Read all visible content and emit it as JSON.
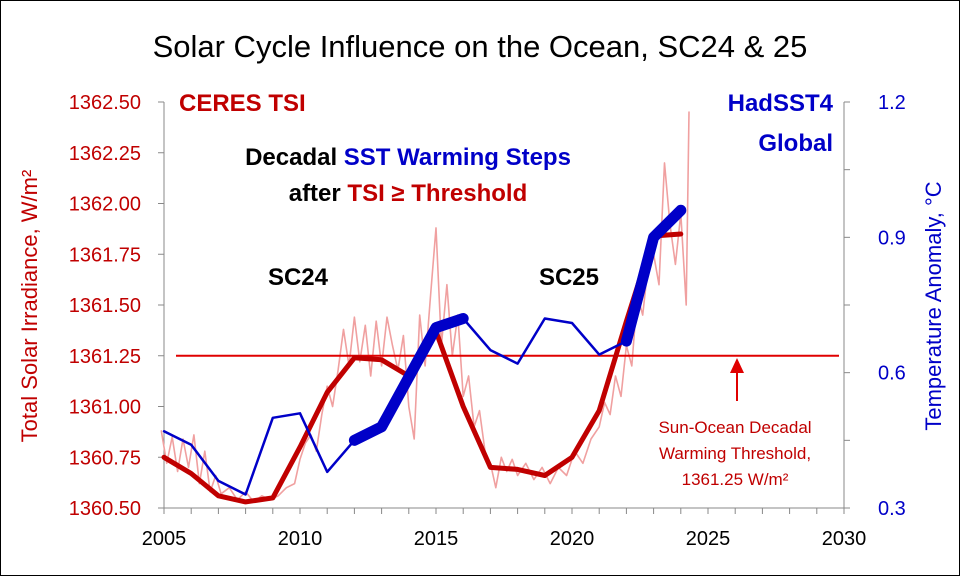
{
  "chart_data": {
    "type": "line",
    "title": "Solar Cycle Influence on the Ocean, SC24 & 25",
    "xlabel": "",
    "ylabel": "Total Solar Irradiance, W/m²",
    "y2label": "Temperature Anomaly, °C",
    "xlim": [
      2005,
      2030
    ],
    "ylim": [
      1360.5,
      1362.5
    ],
    "y2lim": [
      0.3,
      1.2
    ],
    "x_ticks": [
      "2005",
      "2010",
      "2015",
      "2020",
      "2025",
      "2030"
    ],
    "y_ticks": [
      "1360.50",
      "1360.75",
      "1361.00",
      "1361.25",
      "1361.50",
      "1361.75",
      "1362.00",
      "1362.25",
      "1362.50"
    ],
    "y2_ticks": [
      "0.3",
      "0.6",
      "0.9",
      "1.2"
    ],
    "grid": false,
    "colors": {
      "tsi": "#c00000",
      "tsi_monthly": "#f0a0a0",
      "sst": "#0000c8",
      "threshold": "#e00000",
      "text_dark": "#000000"
    },
    "legend": {
      "tsi_label": "CERES TSI",
      "sst_label_line1": "HadSST4",
      "sst_label_line2": "Global"
    },
    "annotations": {
      "headline_1a": "Decadal ",
      "headline_1b": "SST Warming Steps",
      "headline_2a": "after ",
      "headline_2b": "TSI ≥ Threshold",
      "sc24": "SC24",
      "sc25": "SC25",
      "threshold_line1": "Sun-Ocean Decadal",
      "threshold_line2": "Warming Threshold,",
      "threshold_line3": "1361.25 W/m²"
    },
    "threshold": 1361.25,
    "series": [
      {
        "name": "CERES TSI",
        "axis": "left",
        "x": [
          2005,
          2006,
          2007,
          2008,
          2009,
          2010,
          2011,
          2012,
          2013,
          2014,
          2015,
          2016,
          2017,
          2018,
          2019,
          2020,
          2021,
          2022,
          2023,
          2024
        ],
        "values": [
          1360.75,
          1360.67,
          1360.56,
          1360.53,
          1360.55,
          1360.8,
          1361.07,
          1361.24,
          1361.23,
          1361.15,
          1361.37,
          1361.0,
          1360.7,
          1360.69,
          1360.66,
          1360.75,
          1360.98,
          1361.42,
          1361.84,
          1361.85
        ]
      },
      {
        "name": "TSI monthly",
        "axis": "left",
        "x": [
          2004.9,
          2005.1,
          2005.3,
          2005.5,
          2005.7,
          2005.9,
          2006.1,
          2006.3,
          2006.5,
          2006.7,
          2006.9,
          2007.1,
          2007.4,
          2007.7,
          2008.0,
          2008.3,
          2008.6,
          2008.9,
          2009.2,
          2009.5,
          2009.8,
          2010.0,
          2010.2,
          2010.4,
          2010.6,
          2010.8,
          2011.0,
          2011.2,
          2011.4,
          2011.6,
          2011.8,
          2012.0,
          2012.2,
          2012.4,
          2012.6,
          2012.8,
          2013.0,
          2013.2,
          2013.4,
          2013.6,
          2013.8,
          2014.0,
          2014.2,
          2014.4,
          2014.6,
          2014.8,
          2015.0,
          2015.2,
          2015.4,
          2015.6,
          2015.8,
          2016.0,
          2016.2,
          2016.4,
          2016.6,
          2016.8,
          2017.0,
          2017.2,
          2017.4,
          2017.6,
          2017.8,
          2018.0,
          2018.3,
          2018.6,
          2018.9,
          2019.2,
          2019.5,
          2019.8,
          2020.1,
          2020.4,
          2020.7,
          2021.0,
          2021.2,
          2021.4,
          2021.6,
          2021.8,
          2022.0,
          2022.2,
          2022.4,
          2022.6,
          2022.8,
          2023.0,
          2023.2,
          2023.4,
          2023.6,
          2023.8,
          2024.0,
          2024.2,
          2024.3
        ],
        "values": [
          1360.88,
          1360.72,
          1360.85,
          1360.68,
          1360.84,
          1360.7,
          1360.86,
          1360.62,
          1360.78,
          1360.58,
          1360.66,
          1360.57,
          1360.6,
          1360.54,
          1360.58,
          1360.53,
          1360.56,
          1360.54,
          1360.56,
          1360.6,
          1360.62,
          1360.74,
          1360.82,
          1360.86,
          1360.78,
          1360.96,
          1361.1,
          1361.0,
          1361.18,
          1361.38,
          1361.2,
          1361.44,
          1361.22,
          1361.4,
          1361.15,
          1361.42,
          1361.2,
          1361.44,
          1361.3,
          1361.18,
          1361.35,
          1361.0,
          1360.84,
          1361.45,
          1361.2,
          1361.55,
          1361.88,
          1361.3,
          1361.6,
          1361.25,
          1361.45,
          1361.05,
          1361.15,
          1360.9,
          1360.98,
          1360.78,
          1360.72,
          1360.6,
          1360.75,
          1360.68,
          1360.74,
          1360.66,
          1360.72,
          1360.64,
          1360.7,
          1360.62,
          1360.7,
          1360.66,
          1360.78,
          1360.72,
          1360.84,
          1360.9,
          1361.02,
          1360.96,
          1361.15,
          1361.05,
          1361.3,
          1361.2,
          1361.55,
          1361.45,
          1361.7,
          1361.75,
          1361.6,
          1362.2,
          1361.9,
          1361.7,
          1361.95,
          1361.5,
          1362.45
        ]
      },
      {
        "name": "HadSST4 Global",
        "axis": "right",
        "x": [
          2005,
          2006,
          2007,
          2008,
          2009,
          2010,
          2011,
          2012,
          2013,
          2014,
          2015,
          2016,
          2017,
          2018,
          2019,
          2020,
          2021,
          2022,
          2023,
          2024
        ],
        "values": [
          0.47,
          0.44,
          0.36,
          0.33,
          0.5,
          0.51,
          0.38,
          0.45,
          0.48,
          0.59,
          0.7,
          0.72,
          0.65,
          0.62,
          0.72,
          0.71,
          0.64,
          0.67,
          0.9,
          0.96
        ]
      },
      {
        "name": "SST Warming Steps",
        "axis": "right",
        "x": [
          2012,
          2013,
          2014,
          2015,
          2016
        ],
        "values": [
          0.45,
          0.48,
          0.59,
          0.7,
          0.72
        ]
      },
      {
        "name": "SST Warming Steps 2",
        "axis": "right",
        "x": [
          2022,
          2023,
          2024
        ],
        "values": [
          0.67,
          0.9,
          0.96
        ]
      }
    ]
  }
}
